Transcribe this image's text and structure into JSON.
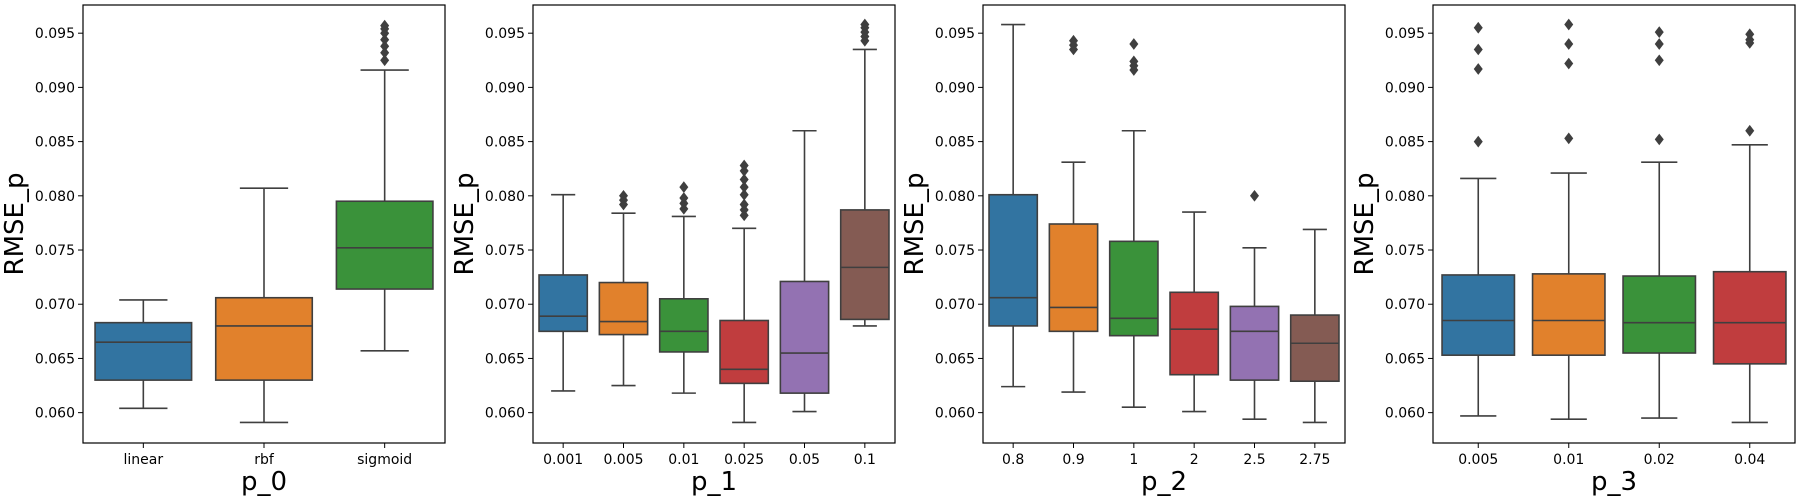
{
  "chart_data": [
    {
      "type": "box",
      "xlabel": "p_0",
      "ylabel": "RMSE_p",
      "ylim": [
        0.0572,
        0.0976
      ],
      "yticks": [
        "0.060",
        "0.065",
        "0.070",
        "0.075",
        "0.080",
        "0.085",
        "0.090",
        "0.095"
      ],
      "categories": [
        "linear",
        "rbf",
        "sigmoid"
      ],
      "boxes": [
        {
          "whisker_low": 0.0604,
          "q1": 0.063,
          "median": 0.0665,
          "q3": 0.0683,
          "whisker_high": 0.0704,
          "outliers": [],
          "color": "#3274a1"
        },
        {
          "whisker_low": 0.0591,
          "q1": 0.063,
          "median": 0.068,
          "q3": 0.0706,
          "whisker_high": 0.0807,
          "outliers": [],
          "color": "#e1812c"
        },
        {
          "whisker_low": 0.0657,
          "q1": 0.0714,
          "median": 0.0752,
          "q3": 0.0795,
          "whisker_high": 0.0916,
          "outliers": [
            0.0925,
            0.0932,
            0.0938,
            0.0944,
            0.095,
            0.0954,
            0.0957
          ],
          "color": "#3a923a"
        }
      ]
    },
    {
      "type": "box",
      "xlabel": "p_1",
      "ylabel": "RMSE_p",
      "ylim": [
        0.0572,
        0.0976
      ],
      "yticks": [
        "0.060",
        "0.065",
        "0.070",
        "0.075",
        "0.080",
        "0.085",
        "0.090",
        "0.095"
      ],
      "categories": [
        "0.001",
        "0.005",
        "0.01",
        "0.025",
        "0.05",
        "0.1"
      ],
      "boxes": [
        {
          "whisker_low": 0.062,
          "q1": 0.0675,
          "median": 0.0689,
          "q3": 0.0727,
          "whisker_high": 0.0801,
          "outliers": [],
          "color": "#3274a1"
        },
        {
          "whisker_low": 0.0625,
          "q1": 0.0672,
          "median": 0.0684,
          "q3": 0.072,
          "whisker_high": 0.0784,
          "outliers": [
            0.0792,
            0.0796,
            0.08
          ],
          "color": "#e1812c"
        },
        {
          "whisker_low": 0.0618,
          "q1": 0.0656,
          "median": 0.0675,
          "q3": 0.0705,
          "whisker_high": 0.0781,
          "outliers": [
            0.0788,
            0.0793,
            0.0798,
            0.0808
          ],
          "color": "#3a923a"
        },
        {
          "whisker_low": 0.0591,
          "q1": 0.0627,
          "median": 0.064,
          "q3": 0.0685,
          "whisker_high": 0.077,
          "outliers": [
            0.0782,
            0.0787,
            0.0792,
            0.0801,
            0.0808,
            0.0815,
            0.0823,
            0.0828
          ],
          "color": "#c03d3e"
        },
        {
          "whisker_low": 0.0601,
          "q1": 0.0618,
          "median": 0.0655,
          "q3": 0.0721,
          "whisker_high": 0.086,
          "outliers": [],
          "color": "#9372b2"
        },
        {
          "whisker_low": 0.068,
          "q1": 0.0686,
          "median": 0.0734,
          "q3": 0.0787,
          "whisker_high": 0.0935,
          "outliers": [
            0.0943,
            0.0947,
            0.0951,
            0.0955,
            0.0958
          ],
          "color": "#845b53"
        }
      ]
    },
    {
      "type": "box",
      "xlabel": "p_2",
      "ylabel": "RMSE_p",
      "ylim": [
        0.0572,
        0.0976
      ],
      "yticks": [
        "0.060",
        "0.065",
        "0.070",
        "0.075",
        "0.080",
        "0.085",
        "0.090",
        "0.095"
      ],
      "categories": [
        "0.8",
        "0.9",
        "1",
        "2",
        "2.5",
        "2.75"
      ],
      "boxes": [
        {
          "whisker_low": 0.0624,
          "q1": 0.068,
          "median": 0.0706,
          "q3": 0.0801,
          "whisker_high": 0.0958,
          "outliers": [],
          "color": "#3274a1"
        },
        {
          "whisker_low": 0.0619,
          "q1": 0.0675,
          "median": 0.0697,
          "q3": 0.0774,
          "whisker_high": 0.0831,
          "outliers": [
            0.0935,
            0.0939,
            0.0943
          ],
          "color": "#e1812c"
        },
        {
          "whisker_low": 0.0605,
          "q1": 0.0671,
          "median": 0.0687,
          "q3": 0.0758,
          "whisker_high": 0.086,
          "outliers": [
            0.0916,
            0.092,
            0.0924,
            0.094
          ],
          "color": "#3a923a"
        },
        {
          "whisker_low": 0.0601,
          "q1": 0.0635,
          "median": 0.0677,
          "q3": 0.0711,
          "whisker_high": 0.0785,
          "outliers": [],
          "color": "#c03d3e"
        },
        {
          "whisker_low": 0.0594,
          "q1": 0.063,
          "median": 0.0675,
          "q3": 0.0698,
          "whisker_high": 0.0752,
          "outliers": [
            0.08
          ],
          "color": "#9372b2"
        },
        {
          "whisker_low": 0.0591,
          "q1": 0.0629,
          "median": 0.0664,
          "q3": 0.069,
          "whisker_high": 0.0769,
          "outliers": [],
          "color": "#845b53"
        }
      ]
    },
    {
      "type": "box",
      "xlabel": "p_3",
      "ylabel": "RMSE_p",
      "ylim": [
        0.0572,
        0.0976
      ],
      "yticks": [
        "0.060",
        "0.065",
        "0.070",
        "0.075",
        "0.080",
        "0.085",
        "0.090",
        "0.095"
      ],
      "categories": [
        "0.005",
        "0.01",
        "0.02",
        "0.04"
      ],
      "boxes": [
        {
          "whisker_low": 0.0597,
          "q1": 0.0653,
          "median": 0.0685,
          "q3": 0.0727,
          "whisker_high": 0.0816,
          "outliers": [
            0.085,
            0.0917,
            0.0935,
            0.0955
          ],
          "color": "#3274a1"
        },
        {
          "whisker_low": 0.0594,
          "q1": 0.0653,
          "median": 0.0685,
          "q3": 0.0728,
          "whisker_high": 0.0821,
          "outliers": [
            0.0853,
            0.0922,
            0.094,
            0.0958
          ],
          "color": "#e1812c"
        },
        {
          "whisker_low": 0.0595,
          "q1": 0.0655,
          "median": 0.0683,
          "q3": 0.0726,
          "whisker_high": 0.0831,
          "outliers": [
            0.0852,
            0.0925,
            0.094,
            0.0951
          ],
          "color": "#3a923a"
        },
        {
          "whisker_low": 0.0591,
          "q1": 0.0645,
          "median": 0.0683,
          "q3": 0.073,
          "whisker_high": 0.0847,
          "outliers": [
            0.086,
            0.0941,
            0.0944,
            0.0949
          ],
          "color": "#c03d3e"
        }
      ]
    }
  ]
}
